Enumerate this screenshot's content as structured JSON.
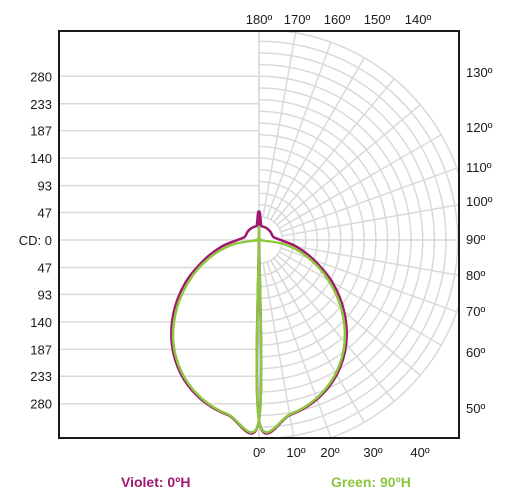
{
  "chart_data": {
    "type": "polar",
    "center_label": "CD: 0",
    "radial_max": 326,
    "radial_ticks": [
      47,
      93,
      140,
      187,
      233,
      280
    ],
    "radial_tick_labels": [
      "47",
      "93",
      "140",
      "187",
      "233",
      "280"
    ],
    "angle_labels_top": [
      "180º",
      "170º",
      "160º",
      "150º",
      "140º"
    ],
    "angle_labels_right": [
      "130º",
      "120º",
      "110º",
      "100º",
      "90º",
      "80º",
      "70º",
      "60º",
      "50º"
    ],
    "angle_labels_bottom": [
      "0º",
      "10º",
      "20º",
      "30º",
      "40º"
    ],
    "series": [
      {
        "name": "Violet: 0ºH",
        "color": "#a0176f",
        "angles": [
          0,
          10,
          20,
          30,
          40,
          50,
          60,
          70,
          80,
          90,
          100,
          110,
          120,
          130,
          140,
          150,
          160,
          170,
          180
        ],
        "values": [
          308,
          304,
          290,
          266,
          232,
          190,
          145,
          100,
          65,
          37,
          26,
          24,
          24,
          24,
          24,
          24,
          24,
          24,
          24
        ]
      },
      {
        "name": "Green: 90ºH",
        "color": "#8dc63f",
        "angles": [
          0,
          10,
          20,
          30,
          40,
          50,
          60,
          70,
          80,
          90,
          100,
          110,
          120,
          130,
          140,
          150,
          160,
          170,
          180
        ],
        "values": [
          308,
          303,
          288,
          263,
          228,
          184,
          137,
          91,
          47,
          0,
          0,
          0,
          0,
          0,
          0,
          0,
          0,
          0,
          0
        ]
      }
    ]
  },
  "legend": {
    "violet_label": "Violet: 0ºH",
    "green_label": "Green: 90ºH",
    "violet_color": "#a0176f",
    "green_color": "#8dc63f"
  }
}
